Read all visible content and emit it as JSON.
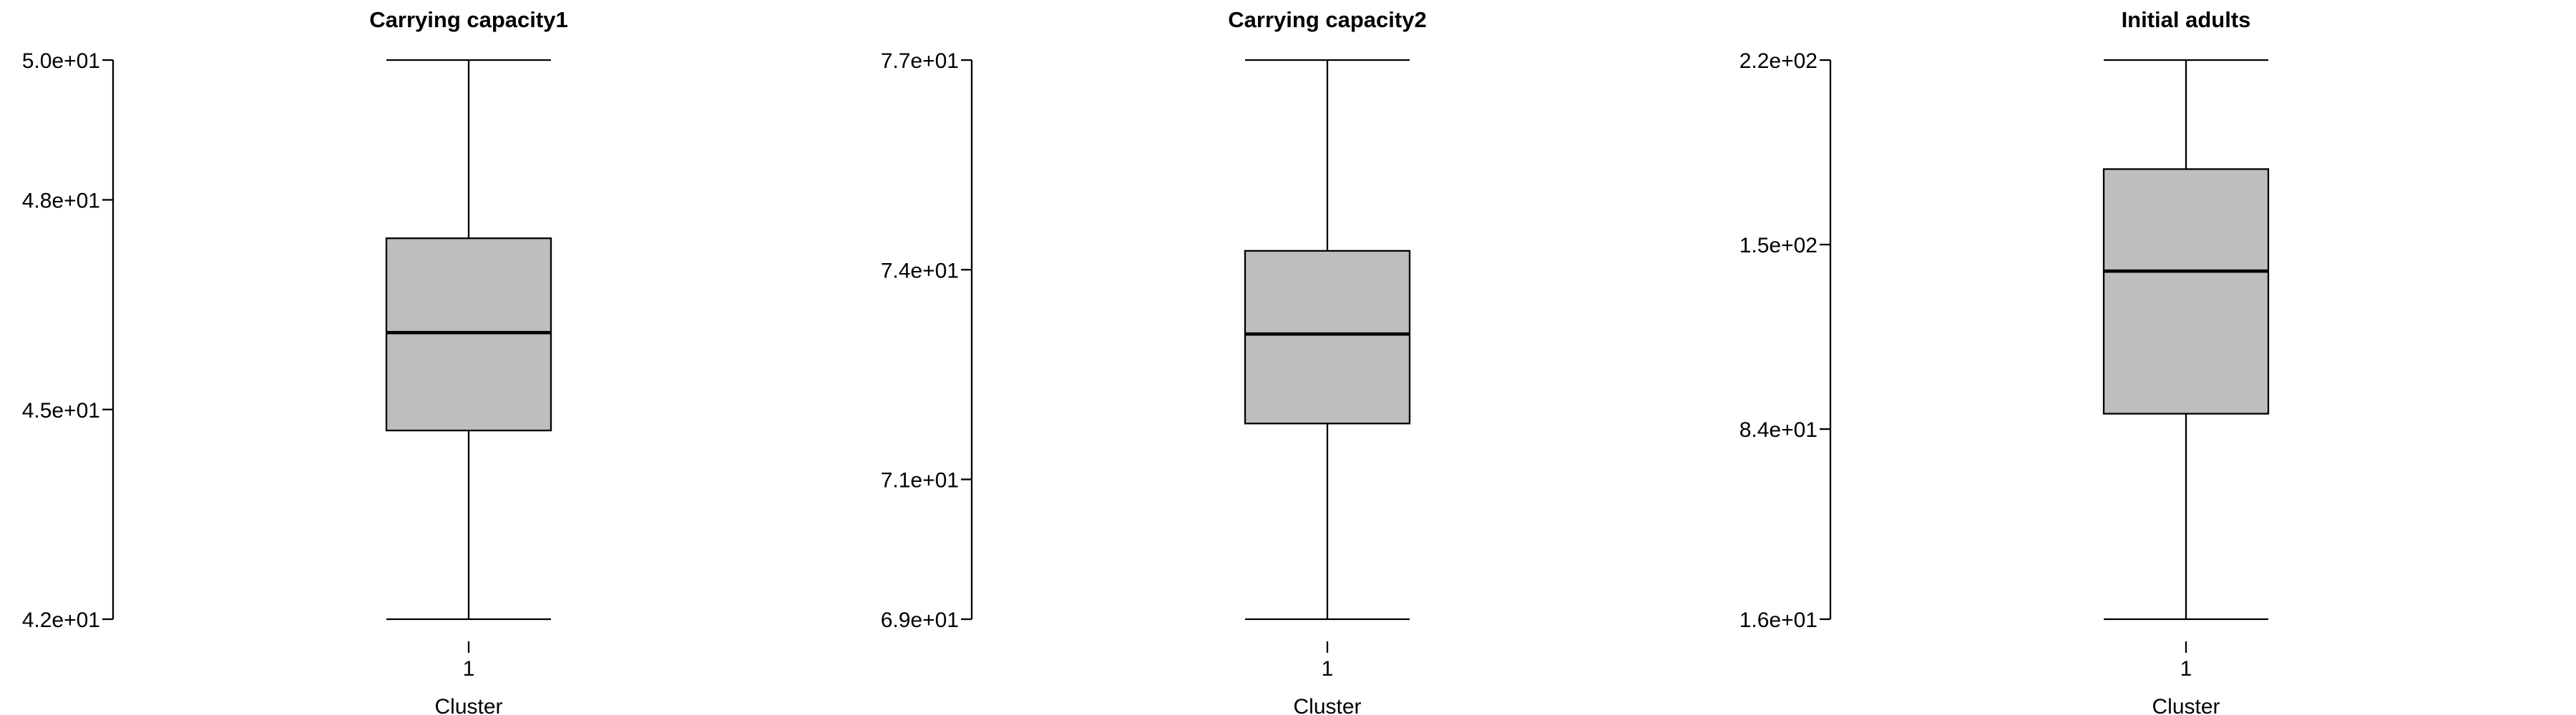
{
  "chart_data": [
    {
      "type": "box",
      "title": "Carrying capacity1",
      "xlabel": "Cluster",
      "categories": [
        "1"
      ],
      "ylim": [
        42,
        50
      ],
      "yticks": [
        {
          "value": 42,
          "label": "4.2e+01"
        },
        {
          "value": 45,
          "label": "4.5e+01"
        },
        {
          "value": 48,
          "label": "4.8e+01"
        },
        {
          "value": 50,
          "label": "5.0e+01"
        }
      ],
      "boxes": [
        {
          "category": "1",
          "min": 42,
          "q1": 44.7,
          "median": 46.1,
          "q3": 47.45,
          "max": 50
        }
      ],
      "box_color": "#bebebe"
    },
    {
      "type": "box",
      "title": "Carrying capacity2",
      "xlabel": "Cluster",
      "categories": [
        "1"
      ],
      "ylim": [
        69,
        77
      ],
      "yticks": [
        {
          "value": 69,
          "label": "6.9e+01"
        },
        {
          "value": 71,
          "label": "7.1e+01"
        },
        {
          "value": 74,
          "label": "7.4e+01"
        },
        {
          "value": 77,
          "label": "7.7e+01"
        }
      ],
      "boxes": [
        {
          "category": "1",
          "min": 69,
          "q1": 71.8,
          "median": 73.08,
          "q3": 74.27,
          "max": 77
        }
      ],
      "box_color": "#bebebe"
    },
    {
      "type": "box",
      "title": "Initial adults",
      "xlabel": "Cluster",
      "categories": [
        "1"
      ],
      "ylim": [
        16,
        216
      ],
      "yticks": [
        {
          "value": 16,
          "label": "1.6e+01"
        },
        {
          "value": 84,
          "label": "8.4e+01"
        },
        {
          "value": 150,
          "label": "1.5e+02"
        },
        {
          "value": 216,
          "label": "2.2e+02"
        }
      ],
      "boxes": [
        {
          "category": "1",
          "min": 16,
          "q1": 89.5,
          "median": 140.5,
          "q3": 177,
          "max": 216
        }
      ],
      "box_color": "#bebebe"
    }
  ]
}
